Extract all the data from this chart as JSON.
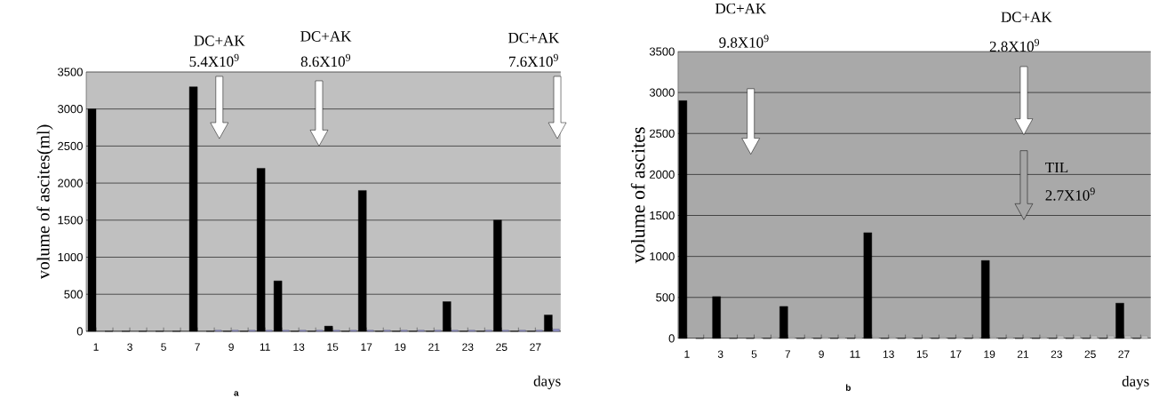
{
  "chart_data": [
    {
      "type": "bar",
      "xlabel": "days",
      "ylabel": "volume of ascites(ml)",
      "categories": [
        "1",
        null,
        "3",
        null,
        "5",
        null,
        "7",
        null,
        "9",
        null,
        "11",
        null,
        "13",
        null,
        "15",
        null,
        "17",
        null,
        "19",
        null,
        "21",
        null,
        "23",
        null,
        "25",
        null,
        "27",
        null
      ],
      "series": [
        {
          "color": "#000000",
          "values": [
            3000,
            0,
            0,
            0,
            0,
            0,
            3300,
            0,
            0,
            0,
            2200,
            680,
            0,
            0,
            70,
            0,
            1900,
            0,
            0,
            0,
            0,
            400,
            0,
            0,
            1500,
            0,
            0,
            220
          ]
        },
        {
          "color": "#9090c8",
          "values": [
            null,
            null,
            null,
            null,
            null,
            null,
            null,
            15,
            15,
            15,
            15,
            15,
            15,
            15,
            15,
            15,
            15,
            15,
            15,
            15,
            15,
            15,
            15,
            15,
            15,
            15,
            15,
            30
          ]
        }
      ],
      "ylim": [
        0,
        3500
      ],
      "yticks": [
        0,
        500,
        1000,
        1500,
        2000,
        2500,
        3000,
        3500
      ],
      "grid": "y",
      "annotations": [
        "DC+AK",
        "5.4X10$^{9}$",
        "DC+AK",
        "8.6X10$^{9}$",
        "DC+AK",
        "7.6X10$^{9}$",
        "a"
      ]
    },
    {
      "type": "bar",
      "xlabel": "days",
      "ylabel": "volume of ascites",
      "categories": [
        "1",
        null,
        "3",
        null,
        "5",
        null,
        "7",
        null,
        "9",
        null,
        "11",
        null,
        "13",
        null,
        "15",
        null,
        "17",
        null,
        "19",
        null,
        "21",
        null,
        "23",
        null,
        "25",
        null,
        "27",
        null
      ],
      "series": [
        {
          "color": "#000000",
          "values": [
            2900,
            0,
            510,
            0,
            0,
            0,
            390,
            0,
            0,
            0,
            0,
            1290,
            0,
            0,
            0,
            0,
            0,
            0,
            950,
            0,
            0,
            0,
            0,
            0,
            0,
            0,
            430,
            0
          ]
        },
        {
          "color": "#c8c8c8",
          "values": [
            null,
            null,
            null,
            null,
            10,
            10,
            10,
            10,
            10,
            10,
            10,
            10,
            10,
            10,
            10,
            10,
            10,
            10,
            10,
            10,
            10,
            10,
            30,
            30,
            30,
            30,
            30,
            30
          ]
        }
      ],
      "ylim": [
        0,
        3500
      ],
      "yticks": [
        0,
        500,
        1000,
        1500,
        2000,
        2500,
        3000,
        3500
      ],
      "grid": "y",
      "annotations": [
        "DC+AK",
        "9.8X10$^{9}$",
        "DC+AK",
        "2.8X10$^{9}$",
        "TIL",
        "2.7X10$^{9}$",
        "b"
      ]
    }
  ]
}
